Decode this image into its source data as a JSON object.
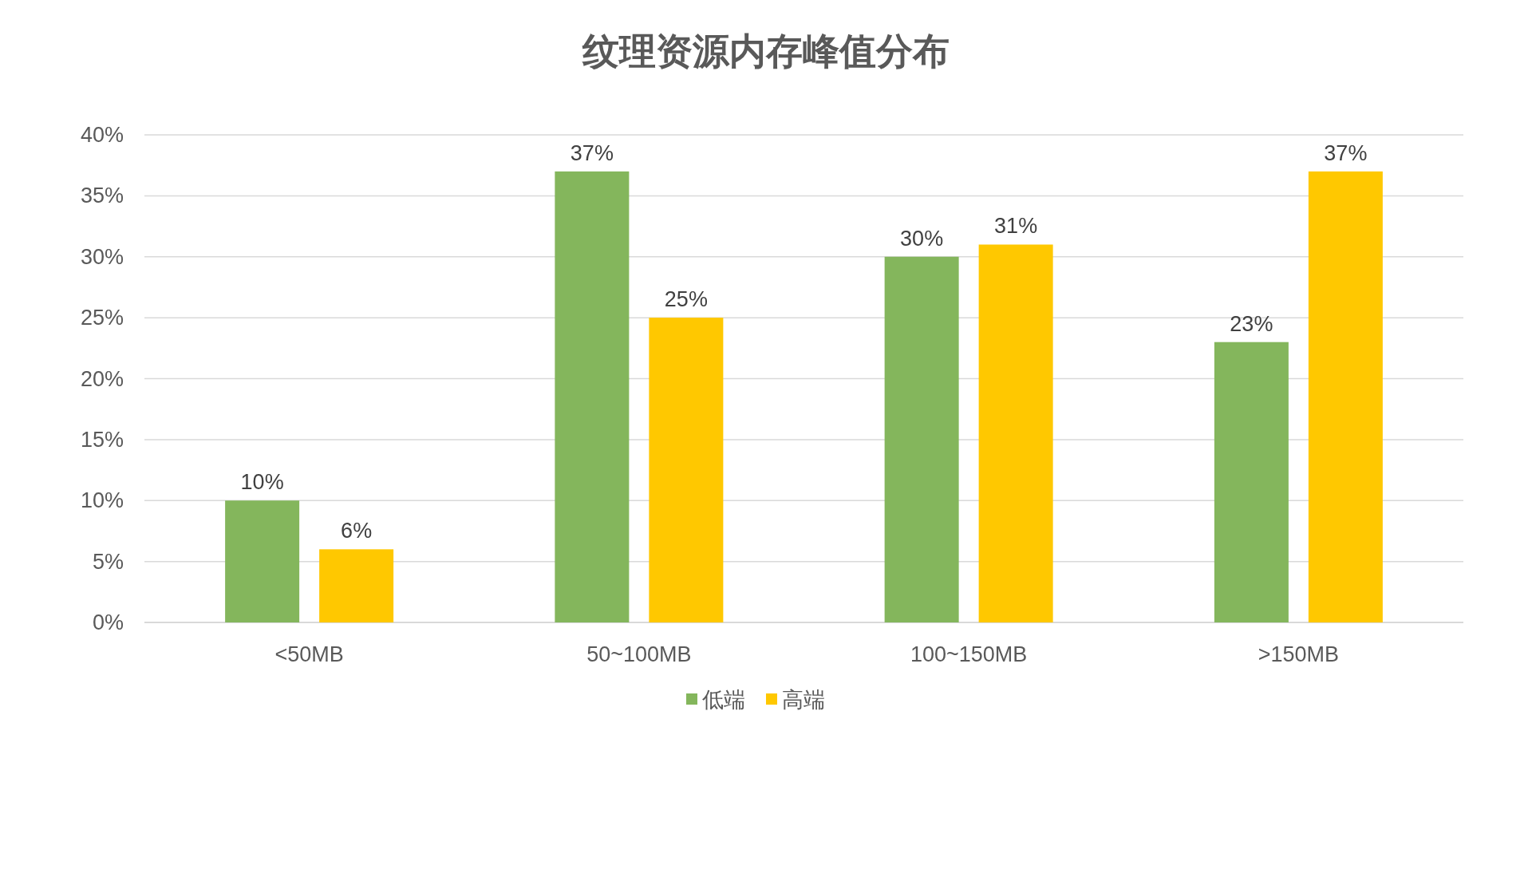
{
  "chart_data": {
    "type": "bar",
    "title": "纹理资源内存峰值分布",
    "categories": [
      "<50MB",
      "50~100MB",
      "100~150MB",
      ">150MB"
    ],
    "series": [
      {
        "name": "低端",
        "color": "#84b65c",
        "values": [
          10,
          37,
          30,
          23
        ],
        "value_labels": [
          "10%",
          "37%",
          "30%",
          "23%"
        ]
      },
      {
        "name": "高端",
        "color": "#ffc800",
        "values": [
          6,
          25,
          31,
          37
        ],
        "value_labels": [
          "6%",
          "25%",
          "31%",
          "37%"
        ]
      }
    ],
    "ylim": [
      0,
      40
    ],
    "yticks": [
      {
        "value": 0,
        "label": "0%"
      },
      {
        "value": 5,
        "label": "5%"
      },
      {
        "value": 10,
        "label": "10%"
      },
      {
        "value": 15,
        "label": "15%"
      },
      {
        "value": 20,
        "label": "20%"
      },
      {
        "value": 25,
        "label": "25%"
      },
      {
        "value": 30,
        "label": "30%"
      },
      {
        "value": 35,
        "label": "35%"
      },
      {
        "value": 40,
        "label": "40%"
      }
    ],
    "grid": "y",
    "legend": "bottom"
  }
}
